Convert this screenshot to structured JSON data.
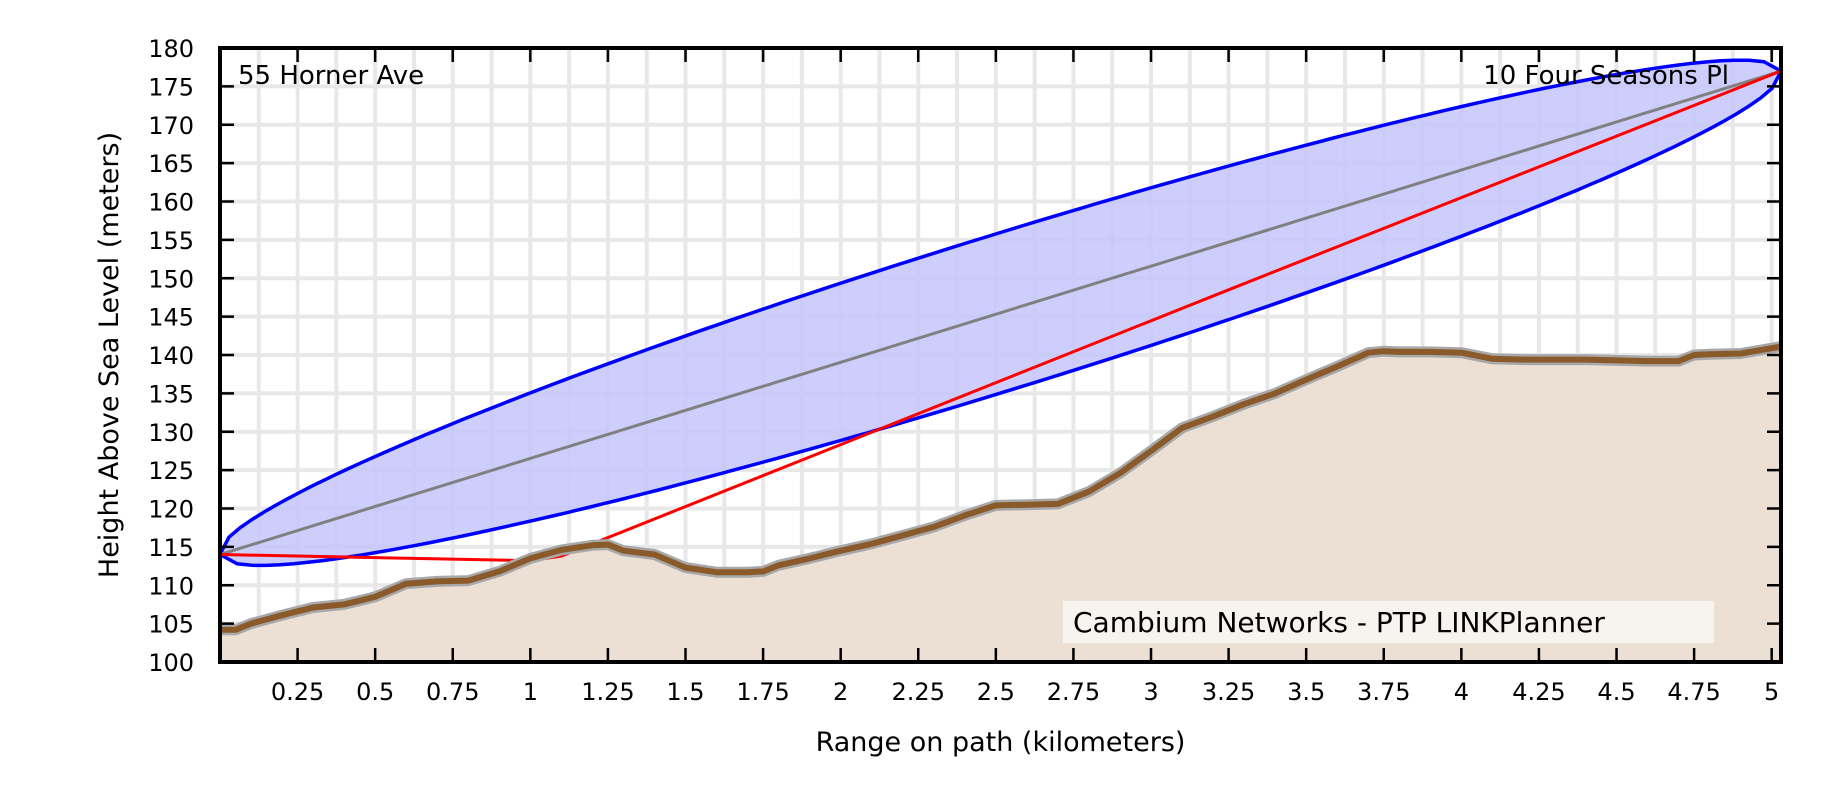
{
  "chart_data": {
    "type": "line",
    "xlabel": "Range on path (kilometers)",
    "ylabel": "Height Above Sea Level (meters)",
    "xlim": [
      0,
      5.03
    ],
    "ylim": [
      100,
      180
    ],
    "x_ticks": [
      0.25,
      0.5,
      0.75,
      1,
      1.25,
      1.5,
      1.75,
      2,
      2.25,
      2.5,
      2.75,
      3,
      3.25,
      3.5,
      3.75,
      4,
      4.25,
      4.5,
      4.75,
      5
    ],
    "x_tick_labels": [
      "0.25",
      "0.5",
      "0.75",
      "1",
      "1.25",
      "1.5",
      "1.75",
      "2",
      "2.25",
      "2.5",
      "2.75",
      "3",
      "3.25",
      "3.5",
      "3.75",
      "4",
      "4.25",
      "4.5",
      "4.75",
      "5"
    ],
    "y_ticks": [
      100,
      105,
      110,
      115,
      120,
      125,
      130,
      135,
      140,
      145,
      150,
      155,
      160,
      165,
      170,
      175,
      180
    ],
    "y_tick_labels": [
      "100",
      "105",
      "110",
      "115",
      "120",
      "125",
      "130",
      "135",
      "140",
      "145",
      "150",
      "155",
      "160",
      "165",
      "170",
      "175",
      "180"
    ],
    "grid": true,
    "site_left": "55 Horner Ave",
    "site_right": "10 Four Seasons Pl",
    "credit": "Cambium Networks - PTP LINKPlanner",
    "colors": {
      "terrain_line": "#8b5a2b",
      "terrain_fill": "#ece0d5",
      "fresnel_stroke": "#0000ff",
      "fresnel_fill": "#c6c6fb",
      "line_of_sight": "#808080",
      "red_path": "#ff0000",
      "grid": "#e8e8e8"
    },
    "series": [
      {
        "type": "area",
        "x": [
          0,
          0.05,
          0.1,
          0.2,
          0.3,
          0.4,
          0.5,
          0.6,
          0.7,
          0.8,
          0.9,
          1.0,
          1.1,
          1.2,
          1.25,
          1.3,
          1.4,
          1.5,
          1.6,
          1.7,
          1.75,
          1.8,
          1.9,
          2.0,
          2.1,
          2.2,
          2.3,
          2.4,
          2.5,
          2.6,
          2.7,
          2.8,
          2.9,
          3.0,
          3.1,
          3.2,
          3.3,
          3.4,
          3.5,
          3.6,
          3.7,
          3.75,
          3.8,
          3.9,
          4.0,
          4.1,
          4.2,
          4.3,
          4.4,
          4.5,
          4.6,
          4.7,
          4.75,
          4.8,
          4.9,
          5.03
        ],
        "values": [
          104.2,
          104.2,
          105.0,
          106.1,
          107.1,
          107.5,
          108.5,
          110.2,
          110.5,
          110.6,
          111.8,
          113.5,
          114.6,
          115.2,
          115.3,
          114.5,
          114.0,
          112.3,
          111.7,
          111.7,
          111.8,
          112.6,
          113.5,
          114.5,
          115.4,
          116.5,
          117.6,
          119.1,
          120.4,
          120.5,
          120.6,
          122.2,
          124.6,
          127.5,
          130.5,
          132.0,
          133.6,
          135.0,
          136.8,
          138.5,
          140.3,
          140.5,
          140.4,
          140.4,
          140.3,
          139.5,
          139.4,
          139.4,
          139.4,
          139.3,
          139.2,
          139.2,
          140.0,
          140.1,
          140.2,
          141.1
        ]
      }
    ],
    "endpoints": [
      {
        "x": 0,
        "y": 114
      },
      {
        "x": 5.03,
        "y": 177
      }
    ],
    "fresnel_max_radius_m": 10,
    "red_path": {
      "x": [
        0,
        1.0,
        1.1,
        3.25,
        5.03
      ],
      "y": [
        114,
        113.2,
        113.8,
        148.5,
        177
      ]
    }
  }
}
